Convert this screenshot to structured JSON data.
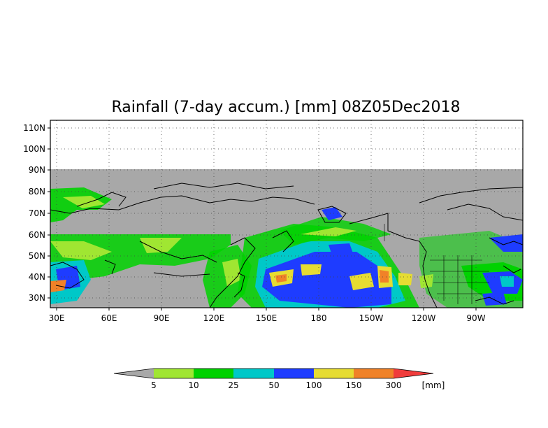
{
  "title": "Rainfall (7-day accum.) [mm] 08Z05Dec2018",
  "map": {
    "lat_labels": [
      "110N",
      "100N",
      "90N",
      "80N",
      "70N",
      "60N",
      "50N",
      "40N",
      "30N"
    ],
    "lon_labels": [
      "30E",
      "60E",
      "90E",
      "120E",
      "150E",
      "180",
      "150W",
      "120W",
      "90W"
    ],
    "no_data_color": "#a8a8a8",
    "grid": "dotted"
  },
  "legend": {
    "unit": "[mm]",
    "thresholds": [
      "5",
      "10",
      "25",
      "50",
      "100",
      "150",
      "300"
    ],
    "colors": [
      "#a8a8a8",
      "#a0e632",
      "#00d200",
      "#00c8c8",
      "#1e3cff",
      "#e6dc32",
      "#f08228",
      "#f03c3c"
    ]
  }
}
